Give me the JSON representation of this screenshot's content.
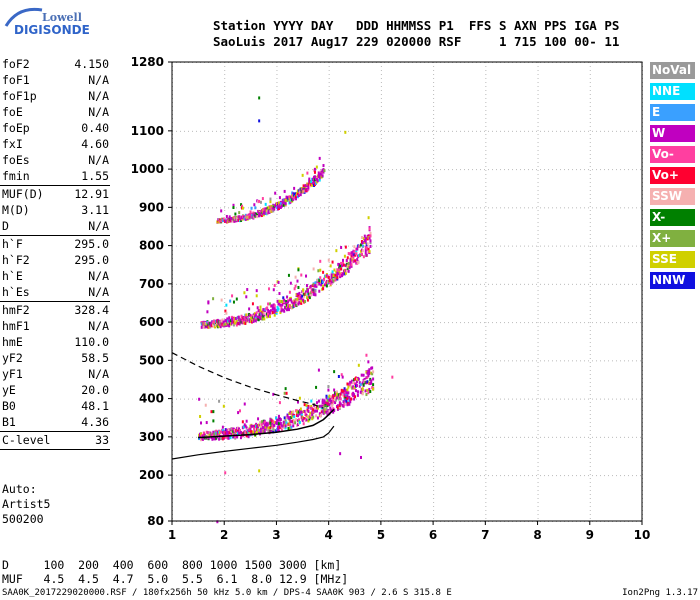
{
  "logo": {
    "line1": "Lowell",
    "line2": "DIGISONDE"
  },
  "header": {
    "line1": "Station YYYY DAY   DDD HHMMSS P1  FFS S AXN PPS IGA PS",
    "line2": "SaoLuis 2017 Aug17 229 020000 RSF     1 715 100 00- 11"
  },
  "params": [
    {
      "k": "foF2",
      "v": "4.150"
    },
    {
      "k": "foF1",
      "v": "N/A"
    },
    {
      "k": "foF1p",
      "v": "N/A"
    },
    {
      "k": "foE",
      "v": "N/A"
    },
    {
      "k": "foEp",
      "v": "0.40"
    },
    {
      "k": "fxI",
      "v": "4.60"
    },
    {
      "k": "foEs",
      "v": "N/A"
    },
    {
      "k": "fmin",
      "v": "1.55",
      "sep": true
    },
    {
      "k": "MUF(D)",
      "v": "12.91"
    },
    {
      "k": "M(D)",
      "v": "3.11"
    },
    {
      "k": "D",
      "v": "N/A",
      "sep": true
    },
    {
      "k": "h`F",
      "v": "295.0"
    },
    {
      "k": "h`F2",
      "v": "295.0"
    },
    {
      "k": "h`E",
      "v": "N/A"
    },
    {
      "k": "h`Es",
      "v": "N/A",
      "sep": true
    },
    {
      "k": "hmF2",
      "v": "328.4"
    },
    {
      "k": "hmF1",
      "v": "N/A"
    },
    {
      "k": "hmE",
      "v": "110.0"
    },
    {
      "k": "yF2",
      "v": "58.5"
    },
    {
      "k": "yF1",
      "v": "N/A"
    },
    {
      "k": "yE",
      "v": "20.0"
    },
    {
      "k": "B0",
      "v": "48.1"
    },
    {
      "k": "B1",
      "v": "4.36",
      "sep": true
    },
    {
      "k": "C-level",
      "v": "33",
      "sep": true
    }
  ],
  "auto": {
    "l1": "Auto:",
    "l2": "Artist5",
    "l3": "500200"
  },
  "legend": [
    {
      "label": "NoVal",
      "color": "#9a9a9a"
    },
    {
      "label": "NNE",
      "color": "#00e0ff"
    },
    {
      "label": "E",
      "color": "#3aa0ff"
    },
    {
      "label": "W",
      "color": "#c000c0"
    },
    {
      "label": "Vo-",
      "color": "#ff3fa0"
    },
    {
      "label": "Vo+",
      "color": "#ff0030"
    },
    {
      "label": "SSW",
      "color": "#f5b0b0"
    },
    {
      "label": "X-",
      "color": "#008000"
    },
    {
      "label": "X+",
      "color": "#80b040"
    },
    {
      "label": "SSE",
      "color": "#d0d000"
    },
    {
      "label": "NNW",
      "color": "#1010e0"
    }
  ],
  "freqtable": {
    "line1": "D     100  200  400  600  800 1000 1500 3000 [km]",
    "line2": "MUF   4.5  4.5  4.7  5.0  5.5  6.1  8.0 12.9 [MHz]"
  },
  "footer": {
    "left": "SAA0K_2017229020000.RSF / 180fx256h 50 kHz 5.0 km / DPS-4 SAA0K 903 / 2.6 S 315.8 E",
    "right": "Ion2Png 1.3.17"
  },
  "chart_data": {
    "type": "scatter",
    "xlim": [
      1,
      10
    ],
    "ylim": [
      80,
      1280
    ],
    "xticks": [
      "1",
      "2",
      "3",
      "4",
      "5",
      "6",
      "7",
      "8",
      "9",
      "10"
    ],
    "yticks": [
      {
        "v": 80,
        "label": "80"
      },
      {
        "v": 200,
        "label": "200"
      },
      {
        "v": 300,
        "label": "300"
      },
      {
        "v": 400,
        "label": "400"
      },
      {
        "v": 500,
        "label": "500"
      },
      {
        "v": 600,
        "label": "600"
      },
      {
        "v": 700,
        "label": "700"
      },
      {
        "v": 800,
        "label": "800"
      },
      {
        "v": 900,
        "label": "900"
      },
      {
        "v": 1000,
        "label": "1000"
      },
      {
        "v": 1100,
        "label": "1100"
      },
      {
        "v": 1280,
        "label": "1280"
      }
    ],
    "grid": true,
    "profile_curve": [
      [
        1.0,
        242
      ],
      [
        1.5,
        253
      ],
      [
        2.0,
        262
      ],
      [
        2.5,
        270
      ],
      [
        3.0,
        278
      ],
      [
        3.4,
        286
      ],
      [
        3.7,
        293
      ],
      [
        3.9,
        300
      ],
      [
        4.0,
        310
      ],
      [
        4.1,
        328
      ]
    ],
    "trace_curve": [
      [
        1.5,
        298
      ],
      [
        2.0,
        302
      ],
      [
        2.5,
        306
      ],
      [
        3.0,
        312
      ],
      [
        3.4,
        320
      ],
      [
        3.7,
        330
      ],
      [
        3.9,
        345
      ],
      [
        4.0,
        358
      ],
      [
        4.1,
        372
      ]
    ],
    "extraordinary_dashed": [
      [
        1.0,
        520
      ],
      [
        1.5,
        485
      ],
      [
        2.0,
        455
      ],
      [
        2.5,
        430
      ],
      [
        3.0,
        410
      ],
      [
        3.4,
        395
      ],
      [
        3.7,
        385
      ],
      [
        3.9,
        375
      ]
    ],
    "echo_bands": [
      {
        "name": "F-trace",
        "x": [
          1.5,
          4.85
        ],
        "y_base": 296,
        "y_rise": 130,
        "spread": 45
      },
      {
        "name": "2F-trace",
        "x": [
          1.55,
          4.8
        ],
        "y_base": 590,
        "y_rise": 200,
        "spread": 35
      },
      {
        "name": "3F-trace",
        "x": [
          1.85,
          3.9
        ],
        "y_base": 865,
        "y_rise": 120,
        "spread": 18
      }
    ]
  }
}
